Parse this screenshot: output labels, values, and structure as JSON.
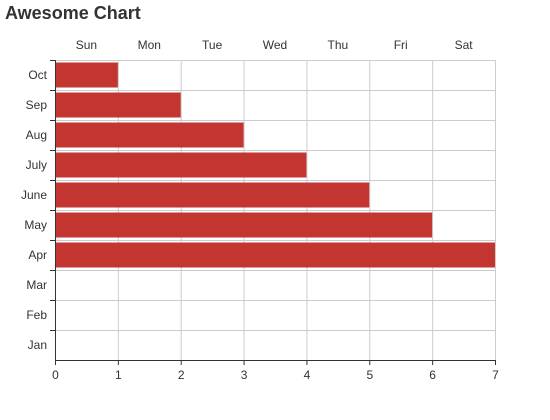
{
  "chart_data": {
    "type": "bar",
    "orientation": "horizontal",
    "title": "Awesome Chart",
    "categories": [
      "Jan",
      "Feb",
      "Mar",
      "Apr",
      "May",
      "June",
      "July",
      "Aug",
      "Sep",
      "Oct"
    ],
    "values": [
      0,
      0,
      0,
      7,
      6,
      5,
      4,
      3,
      2,
      1
    ],
    "x_ticks": [
      0,
      1,
      2,
      3,
      4,
      5,
      6,
      7
    ],
    "xlim": [
      0,
      7
    ],
    "top_axis_labels": [
      "Sun",
      "Mon",
      "Tue",
      "Wed",
      "Thu",
      "Fri",
      "Sat"
    ],
    "grid": true,
    "colors": {
      "bar": "#c23531",
      "grid": "#cccccc",
      "axis": "#333333"
    }
  }
}
